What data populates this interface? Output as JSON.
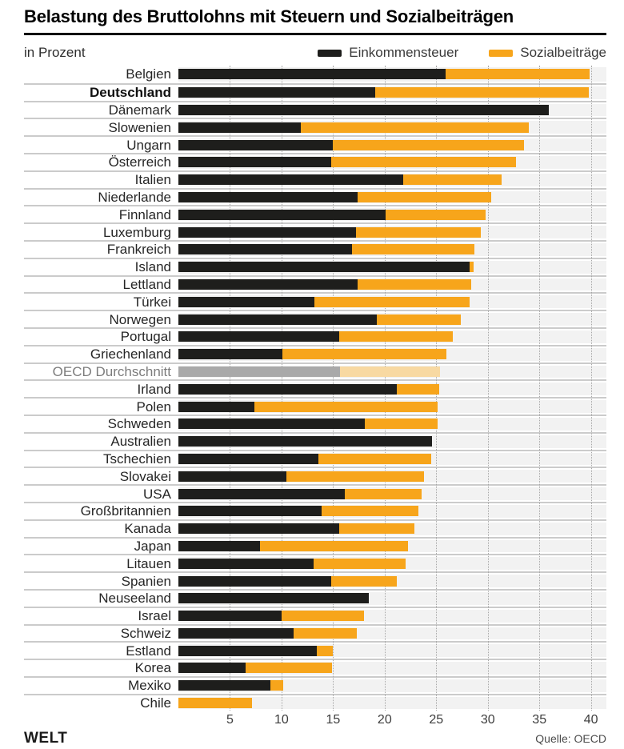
{
  "footer": {
    "brand": "WELT"
  },
  "chart_data": {
    "type": "bar",
    "orientation": "horizontal",
    "stacked": true,
    "title": "Belastung des Bruttolohns mit Steuern und Sozialbeiträgen",
    "subtitle": "in Prozent",
    "source": "Quelle: OECD",
    "legend": [
      {
        "label": "Einkommensteuer",
        "color": "#1e1e1c"
      },
      {
        "label": "Sozialbeiträge",
        "color": "#f7a51b"
      }
    ],
    "colors": {
      "einkommensteuer": "#1e1e1c",
      "sozialbeitraege": "#f7a51b",
      "oecd_einkommensteuer": "#a9a9a9",
      "oecd_sozialbeitraege": "#f8d9a2",
      "track": "#f2f2f2"
    },
    "grid": true,
    "legend_position": "top-right",
    "x_ticks": [
      5,
      10,
      15,
      20,
      25,
      30,
      35,
      40
    ],
    "xlim": [
      0,
      41.5
    ],
    "bold_category": "Deutschland",
    "average_category": "OECD Durchschnitt",
    "categories": [
      "Belgien",
      "Deutschland",
      "Dänemark",
      "Slowenien",
      "Ungarn",
      "Österreich",
      "Italien",
      "Niederlande",
      "Finnland",
      "Luxemburg",
      "Frankreich",
      "Island",
      "Lettland",
      "Türkei",
      "Norwegen",
      "Portugal",
      "Griechenland",
      "OECD Durchschnitt",
      "Irland",
      "Polen",
      "Schweden",
      "Australien",
      "Tschechien",
      "Slovakei",
      "USA",
      "Großbritannien",
      "Kanada",
      "Japan",
      "Litauen",
      "Spanien",
      "Neuseeland",
      "Israel",
      "Schweiz",
      "Estland",
      "Korea",
      "Mexiko",
      "Chile"
    ],
    "series": [
      {
        "name": "Einkommensteuer",
        "values": [
          25.9,
          19.1,
          35.9,
          11.9,
          15.0,
          14.8,
          21.8,
          17.4,
          20.1,
          17.2,
          16.8,
          28.2,
          17.4,
          13.2,
          19.2,
          15.6,
          10.1,
          15.7,
          21.2,
          7.4,
          18.1,
          24.6,
          13.6,
          10.5,
          16.1,
          13.9,
          15.6,
          7.9,
          13.1,
          14.8,
          18.5,
          10.0,
          11.2,
          13.4,
          6.5,
          8.9,
          0
        ]
      },
      {
        "name": "Sozialbeiträge",
        "values": [
          14.0,
          20.7,
          0,
          22.1,
          18.5,
          17.9,
          9.5,
          12.9,
          9.7,
          12.1,
          11.9,
          0.4,
          11.0,
          15.0,
          8.2,
          11.0,
          15.9,
          9.7,
          4.1,
          17.7,
          7.0,
          0,
          10.9,
          13.3,
          7.5,
          9.4,
          7.3,
          14.4,
          8.9,
          6.4,
          0,
          8.0,
          6.1,
          1.6,
          8.4,
          1.3,
          7.1
        ]
      }
    ]
  }
}
